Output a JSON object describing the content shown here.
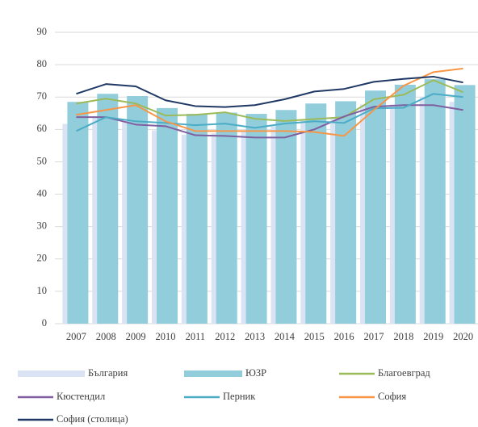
{
  "chart_data": {
    "type": "bar-line",
    "categories": [
      "2007",
      "2008",
      "2009",
      "2010",
      "2011",
      "2012",
      "2013",
      "2014",
      "2015",
      "2016",
      "2017",
      "2018",
      "2019",
      "2020"
    ],
    "ylim": [
      0,
      90
    ],
    "yticks": [
      0,
      10,
      20,
      30,
      40,
      50,
      60,
      70,
      80,
      90
    ],
    "grid": true,
    "legend": "bottom",
    "series": [
      {
        "name": "България",
        "kind": "bar",
        "color": "#dae3f3",
        "values": [
          61.7,
          64.0,
          62.6,
          59.7,
          58.4,
          58.8,
          59.5,
          61.0,
          62.9,
          63.4,
          67.7,
          67.7,
          70.1,
          68.5
        ]
      },
      {
        "name": "ЮЗР",
        "kind": "bar",
        "color": "#92cddc",
        "values": [
          68.5,
          71.0,
          70.3,
          66.6,
          64.8,
          65.2,
          64.8,
          66.0,
          68.0,
          68.7,
          72.0,
          73.8,
          75.5,
          73.7
        ]
      },
      {
        "name": "Благоевград",
        "kind": "line",
        "color": "#9bbb59",
        "values": [
          68.0,
          69.5,
          68.0,
          64.3,
          64.5,
          65.3,
          63.3,
          62.6,
          63.2,
          63.8,
          69.3,
          70.7,
          75.2,
          71.5
        ]
      },
      {
        "name": "Кюстендил",
        "kind": "line",
        "color": "#7f5fa0",
        "values": [
          63.8,
          63.8,
          61.5,
          61.0,
          58.2,
          58.0,
          57.5,
          57.5,
          60.0,
          64.0,
          67.0,
          67.5,
          67.5,
          66.0
        ]
      },
      {
        "name": "Перник",
        "kind": "line",
        "color": "#4bacc6",
        "values": [
          59.5,
          63.8,
          62.5,
          62.0,
          61.3,
          61.8,
          60.5,
          61.8,
          62.5,
          62.0,
          66.5,
          66.7,
          71.0,
          70.0
        ]
      },
      {
        "name": "София",
        "kind": "line",
        "color": "#f79646",
        "values": [
          64.5,
          66.0,
          67.5,
          62.5,
          59.5,
          59.5,
          59.5,
          59.5,
          59.2,
          58.0,
          66.0,
          73.5,
          77.7,
          78.8
        ]
      },
      {
        "name": "София (столица)",
        "kind": "line",
        "color": "#1f3864",
        "values": [
          71.0,
          74.0,
          73.3,
          69.0,
          67.2,
          66.9,
          67.5,
          69.3,
          71.7,
          72.5,
          74.7,
          75.6,
          76.3,
          74.5
        ]
      }
    ]
  }
}
